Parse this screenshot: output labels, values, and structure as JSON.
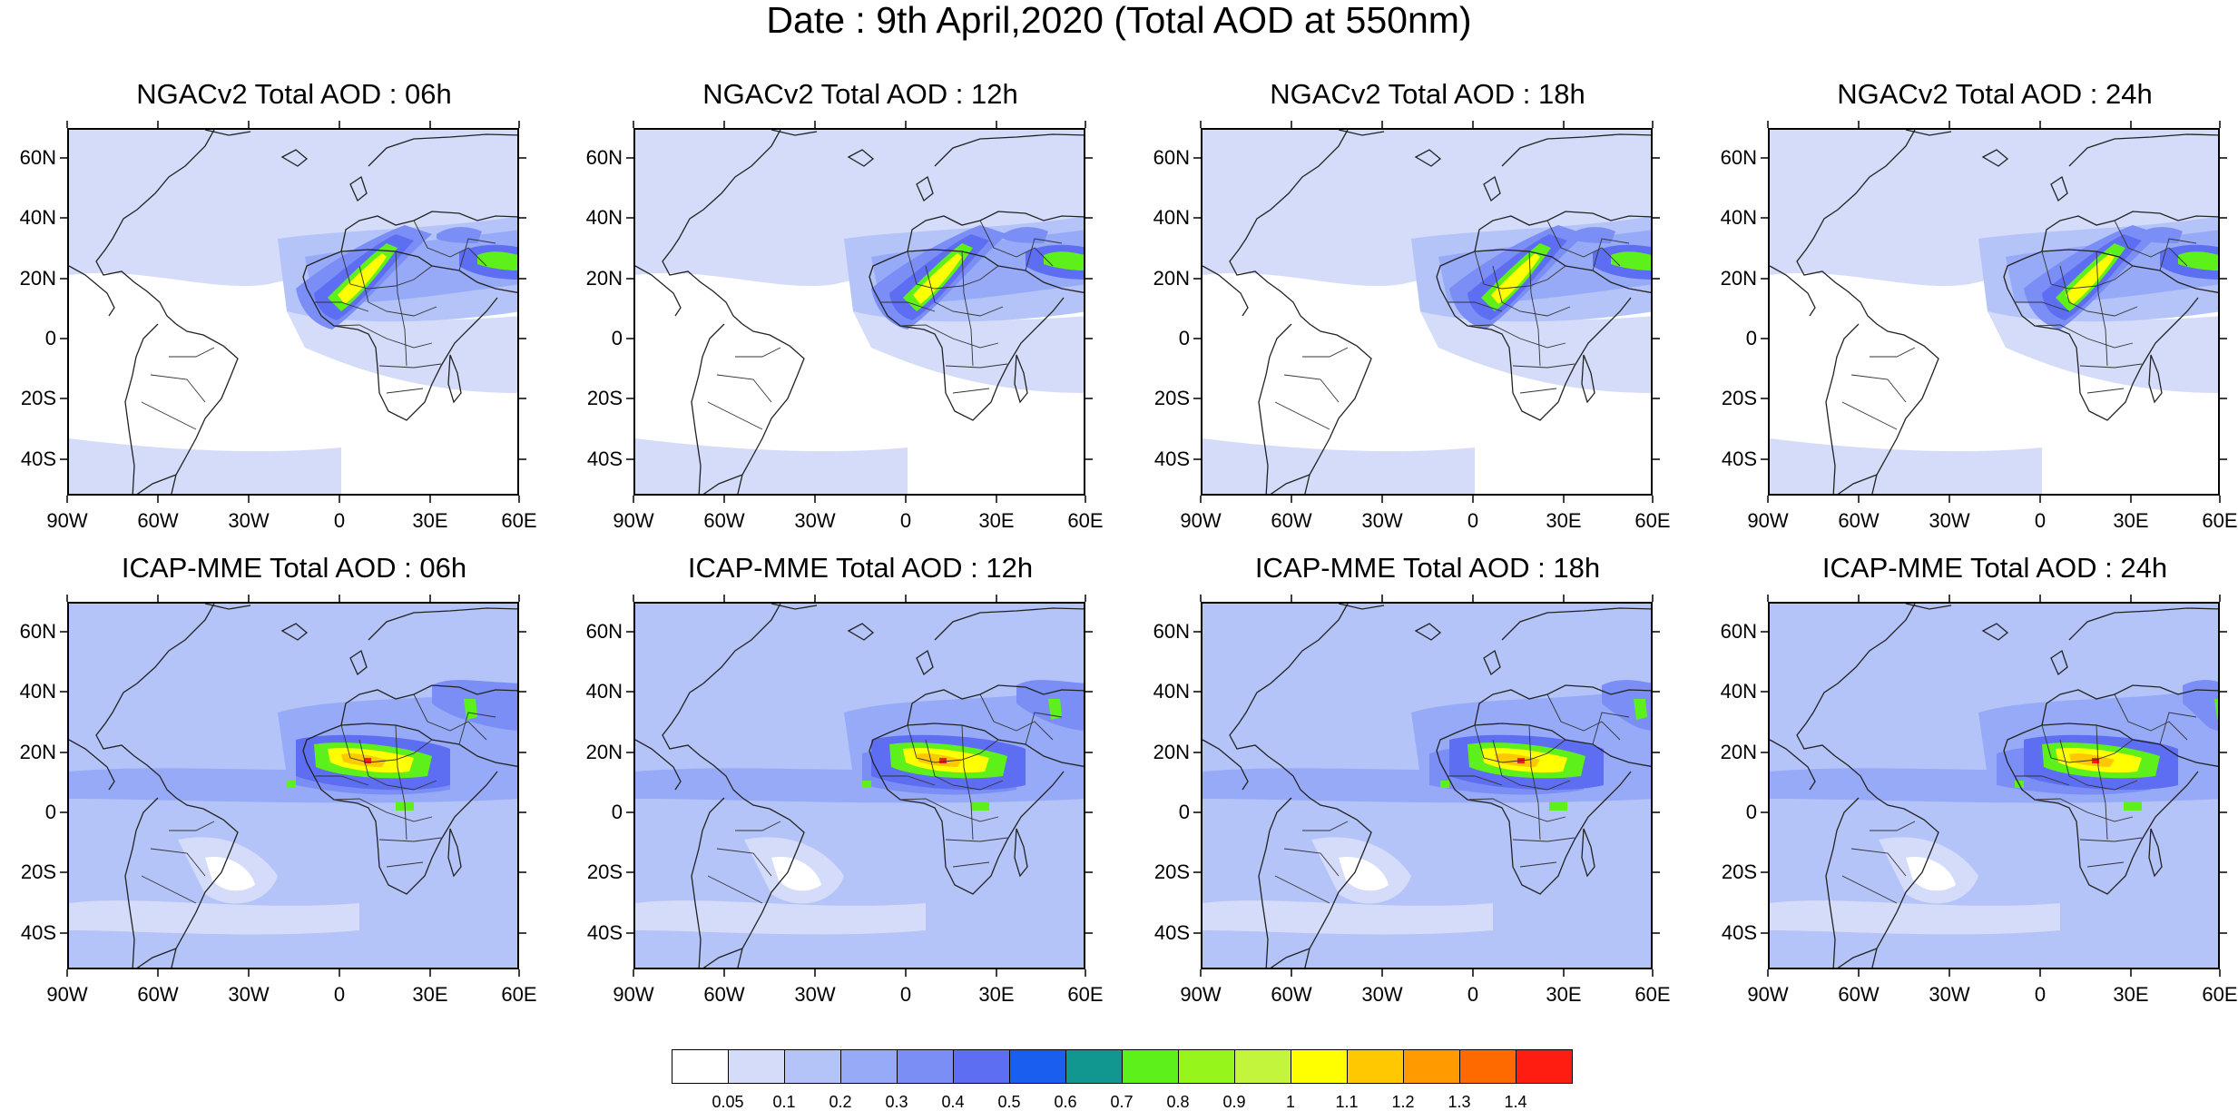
{
  "title": "Date : 9th April,2020 (Total AOD at 550nm)",
  "lat_labels": [
    "60N",
    "40N",
    "20N",
    "0",
    "20S",
    "40S"
  ],
  "lon_labels": [
    "90W",
    "60W",
    "30W",
    "0",
    "30E",
    "60E"
  ],
  "panels": [
    {
      "title": "NGACv2 Total AOD : 06h",
      "model": "NGACv2",
      "hour": "06h"
    },
    {
      "title": "NGACv2 Total AOD : 12h",
      "model": "NGACv2",
      "hour": "12h"
    },
    {
      "title": "NGACv2 Total AOD : 18h",
      "model": "NGACv2",
      "hour": "18h"
    },
    {
      "title": "NGACv2 Total AOD : 24h",
      "model": "NGACv2",
      "hour": "24h"
    },
    {
      "title": "ICAP-MME Total AOD : 06h",
      "model": "ICAP-MME",
      "hour": "06h"
    },
    {
      "title": "ICAP-MME Total AOD : 12h",
      "model": "ICAP-MME",
      "hour": "12h"
    },
    {
      "title": "ICAP-MME Total AOD : 18h",
      "model": "ICAP-MME",
      "hour": "18h"
    },
    {
      "title": "ICAP-MME Total AOD : 24h",
      "model": "ICAP-MME",
      "hour": "24h"
    }
  ],
  "colorbar": {
    "labels": [
      "0.05",
      "0.1",
      "0.2",
      "0.3",
      "0.4",
      "0.5",
      "0.6",
      "0.7",
      "0.8",
      "0.9",
      "1",
      "1.1",
      "1.2",
      "1.3",
      "1.4"
    ],
    "colors": [
      "#ffffff",
      "#d4dcfa",
      "#b4c3f8",
      "#96aaf7",
      "#7a8ef5",
      "#5e6ef2",
      "#1a5ef0",
      "#129690",
      "#5ef01a",
      "#96f51a",
      "#c3f53c",
      "#ffff00",
      "#ffc800",
      "#ff9a00",
      "#ff6a00",
      "#ff1c10"
    ]
  }
}
